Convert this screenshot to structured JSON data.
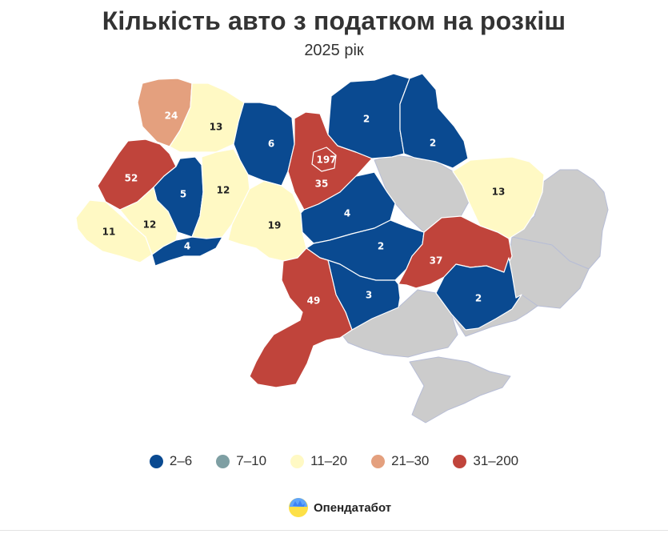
{
  "title": "Кількість авто з податком на розкіш",
  "subtitle": "2025 рік",
  "colors": {
    "c2_6": "#0a4a91",
    "c7_10": "#7e9fa3",
    "c11_20": "#fff9c4",
    "c21_30": "#e4a07e",
    "c31_200": "#c0443b",
    "no_data": "#cccccc"
  },
  "legend": [
    {
      "label": "2–6",
      "color": "#0a4a91"
    },
    {
      "label": "7–10",
      "color": "#7e9fa3"
    },
    {
      "label": "11–20",
      "color": "#fff9c4"
    },
    {
      "label": "21–30",
      "color": "#e4a07e"
    },
    {
      "label": "31–200",
      "color": "#c0443b"
    }
  ],
  "regions": [
    {
      "key": "volyn",
      "value": "24"
    },
    {
      "key": "rivne",
      "value": "13"
    },
    {
      "key": "zhytomyr",
      "value": "6"
    },
    {
      "key": "kyiv_city",
      "value": "197"
    },
    {
      "key": "kyiv_obl",
      "value": "35"
    },
    {
      "key": "chernihiv",
      "value": "2"
    },
    {
      "key": "sumy",
      "value": "2"
    },
    {
      "key": "kharkiv",
      "value": "13"
    },
    {
      "key": "lviv",
      "value": "52"
    },
    {
      "key": "ternopil",
      "value": "5"
    },
    {
      "key": "khmelnytskyi",
      "value": "12"
    },
    {
      "key": "zakarpattia",
      "value": "11"
    },
    {
      "key": "ivano_frankivsk",
      "value": "12"
    },
    {
      "key": "chernivtsi",
      "value": "4"
    },
    {
      "key": "vinnytsia",
      "value": "19"
    },
    {
      "key": "cherkasy",
      "value": "4"
    },
    {
      "key": "kirovohrad",
      "value": "2"
    },
    {
      "key": "dnipropetrovsk",
      "value": "37"
    },
    {
      "key": "mykolaiv",
      "value": "3"
    },
    {
      "key": "odesa",
      "value": "49"
    },
    {
      "key": "zaporizhzhia",
      "value": "2"
    }
  ],
  "brand": {
    "name": "Опендатабот",
    "icon": "opendatabot-logo-icon"
  }
}
